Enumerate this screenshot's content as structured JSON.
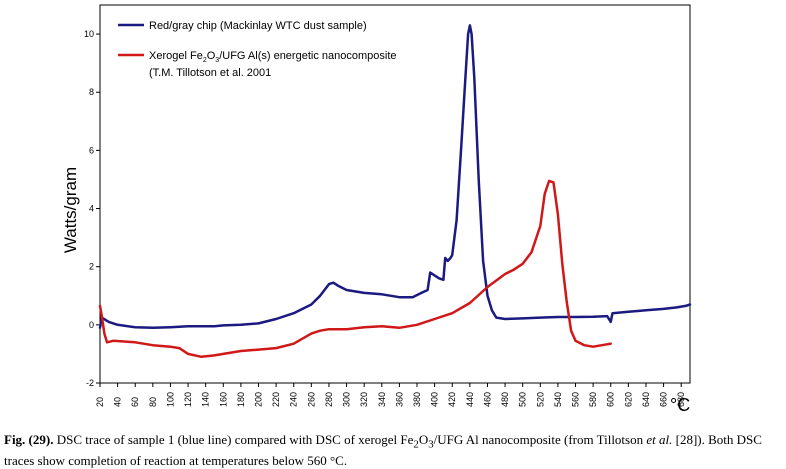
{
  "chart_data": {
    "type": "line",
    "ylabel": "Watts/gram",
    "xlabel": "°C",
    "xlim": [
      20,
      690
    ],
    "ylim": [
      -2,
      11
    ],
    "xticks": [
      20,
      40,
      60,
      80,
      100,
      120,
      140,
      160,
      180,
      200,
      220,
      240,
      260,
      280,
      300,
      320,
      340,
      360,
      380,
      400,
      420,
      440,
      460,
      480,
      500,
      520,
      540,
      560,
      580,
      600,
      620,
      640,
      660,
      680
    ],
    "yticks": [
      -2,
      0,
      2,
      4,
      6,
      8,
      10
    ],
    "grid": false,
    "legend_position": "top-left",
    "series": [
      {
        "name": "Red/gray chip (Mackinlay WTC dust sample)",
        "color": "#1a1a80",
        "points": [
          [
            20,
            -0.1
          ],
          [
            22,
            0.25
          ],
          [
            30,
            0.1
          ],
          [
            40,
            0.0
          ],
          [
            60,
            -0.08
          ],
          [
            80,
            -0.1
          ],
          [
            100,
            -0.08
          ],
          [
            120,
            -0.05
          ],
          [
            140,
            -0.05
          ],
          [
            150,
            -0.05
          ],
          [
            160,
            -0.02
          ],
          [
            180,
            0.0
          ],
          [
            200,
            0.05
          ],
          [
            220,
            0.2
          ],
          [
            240,
            0.4
          ],
          [
            260,
            0.7
          ],
          [
            270,
            1.0
          ],
          [
            280,
            1.4
          ],
          [
            285,
            1.45
          ],
          [
            290,
            1.35
          ],
          [
            300,
            1.2
          ],
          [
            320,
            1.1
          ],
          [
            340,
            1.05
          ],
          [
            360,
            0.95
          ],
          [
            375,
            0.95
          ],
          [
            385,
            1.1
          ],
          [
            392,
            1.2
          ],
          [
            395,
            1.8
          ],
          [
            400,
            1.7
          ],
          [
            405,
            1.6
          ],
          [
            410,
            1.55
          ],
          [
            412,
            2.3
          ],
          [
            415,
            2.2
          ],
          [
            418,
            2.3
          ],
          [
            420,
            2.4
          ],
          [
            425,
            3.6
          ],
          [
            430,
            6.0
          ],
          [
            435,
            8.5
          ],
          [
            438,
            10.0
          ],
          [
            440,
            10.3
          ],
          [
            442,
            10.0
          ],
          [
            445,
            8.5
          ],
          [
            450,
            5.0
          ],
          [
            455,
            2.2
          ],
          [
            460,
            1.0
          ],
          [
            465,
            0.5
          ],
          [
            470,
            0.25
          ],
          [
            480,
            0.2
          ],
          [
            500,
            0.22
          ],
          [
            520,
            0.25
          ],
          [
            540,
            0.27
          ],
          [
            560,
            0.27
          ],
          [
            580,
            0.28
          ],
          [
            596,
            0.3
          ],
          [
            600,
            0.1
          ],
          [
            602,
            0.4
          ],
          [
            620,
            0.45
          ],
          [
            640,
            0.5
          ],
          [
            660,
            0.55
          ],
          [
            675,
            0.6
          ],
          [
            685,
            0.65
          ],
          [
            690,
            0.7
          ]
        ]
      },
      {
        "name": "Xerogel Fe2O3/UFG Al(s) energetic nanocomposite",
        "name_line2": "(T.M. Tillotson et al. 2001",
        "color": "#d01818",
        "points": [
          [
            20,
            0.65
          ],
          [
            22,
            0.3
          ],
          [
            25,
            -0.3
          ],
          [
            28,
            -0.6
          ],
          [
            35,
            -0.55
          ],
          [
            60,
            -0.6
          ],
          [
            80,
            -0.7
          ],
          [
            100,
            -0.75
          ],
          [
            110,
            -0.8
          ],
          [
            120,
            -1.0
          ],
          [
            135,
            -1.1
          ],
          [
            150,
            -1.05
          ],
          [
            160,
            -1.0
          ],
          [
            180,
            -0.9
          ],
          [
            200,
            -0.85
          ],
          [
            220,
            -0.8
          ],
          [
            240,
            -0.65
          ],
          [
            260,
            -0.3
          ],
          [
            270,
            -0.2
          ],
          [
            280,
            -0.15
          ],
          [
            300,
            -0.15
          ],
          [
            320,
            -0.08
          ],
          [
            340,
            -0.05
          ],
          [
            360,
            -0.1
          ],
          [
            380,
            0.0
          ],
          [
            400,
            0.2
          ],
          [
            420,
            0.4
          ],
          [
            440,
            0.75
          ],
          [
            460,
            1.3
          ],
          [
            480,
            1.75
          ],
          [
            490,
            1.9
          ],
          [
            500,
            2.1
          ],
          [
            510,
            2.5
          ],
          [
            520,
            3.4
          ],
          [
            525,
            4.5
          ],
          [
            530,
            4.95
          ],
          [
            535,
            4.9
          ],
          [
            540,
            3.8
          ],
          [
            545,
            2.1
          ],
          [
            550,
            0.8
          ],
          [
            555,
            -0.2
          ],
          [
            560,
            -0.55
          ],
          [
            570,
            -0.7
          ],
          [
            580,
            -0.75
          ],
          [
            590,
            -0.7
          ],
          [
            600,
            -0.65
          ]
        ]
      }
    ]
  },
  "caption": {
    "label": "Fig. (29).",
    "text_1": " DSC trace of sample 1 (blue line) compared with DSC of xerogel Fe",
    "sub_1": "2",
    "text_2": "O",
    "sub_2": "3",
    "text_3": "/UFG Al nanocomposite (from Tillotson ",
    "italic": "et al.",
    "text_4": " [28]). Both DSC traces show completion of reaction at temperatures below 560 °C."
  }
}
